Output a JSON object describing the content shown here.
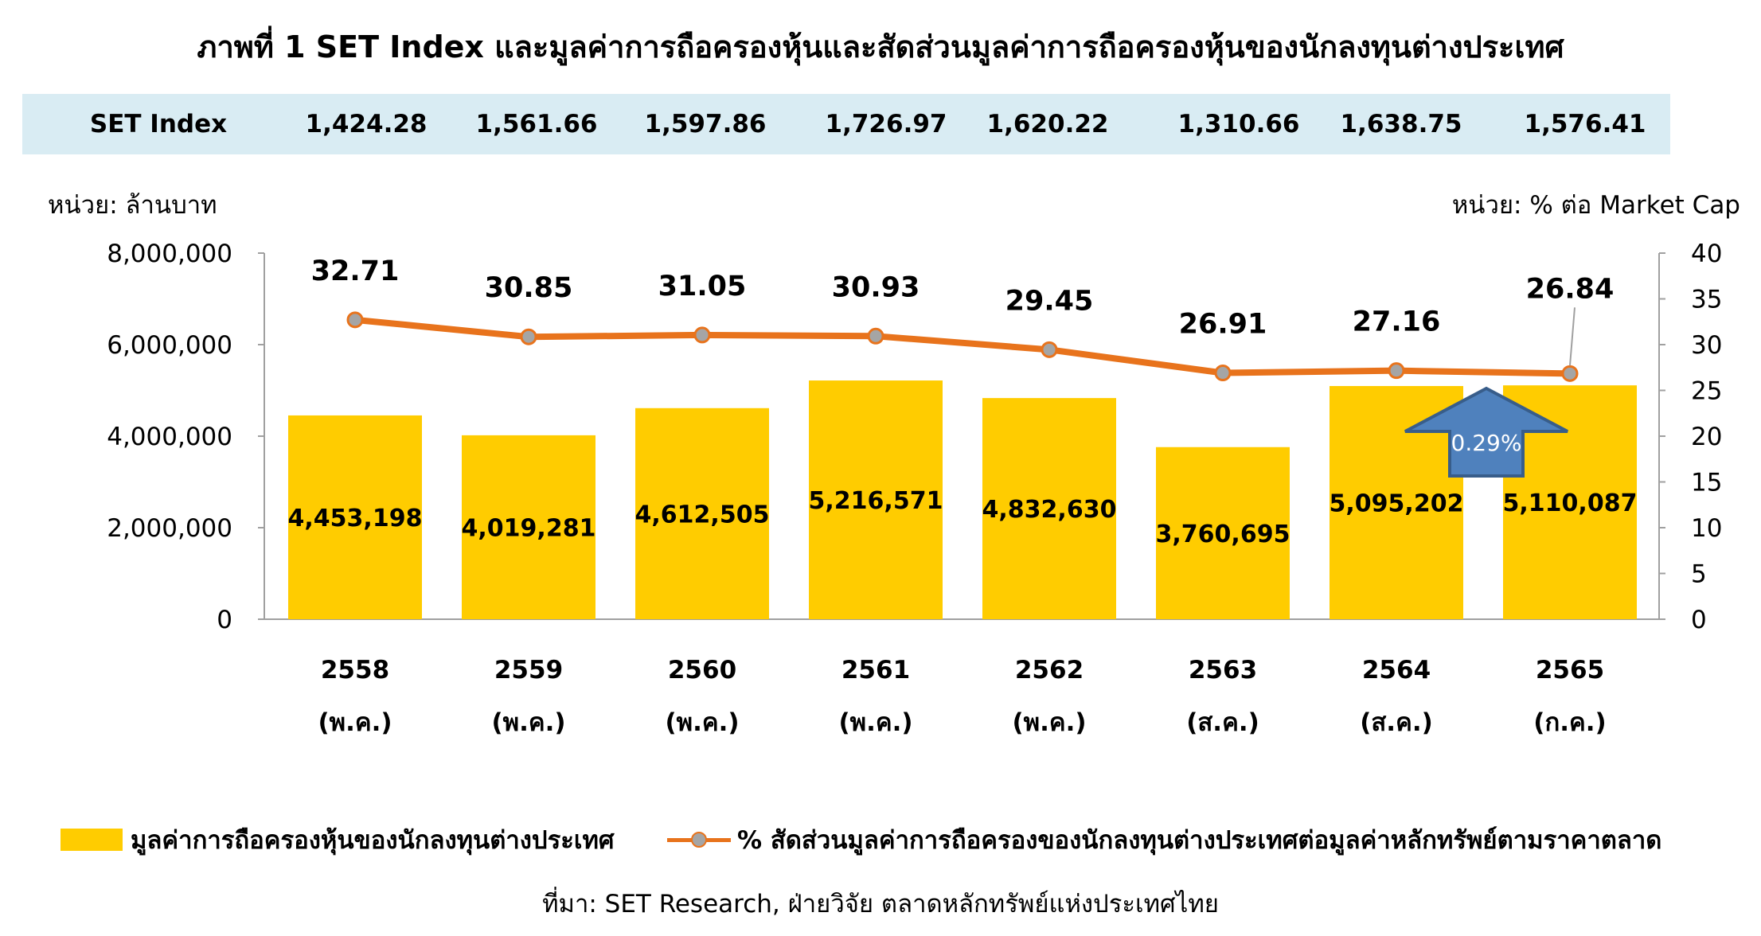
{
  "title": "ภาพที่ 1 SET Index และมูลค่าการถือครองหุ้นและสัดส่วนมูลค่าการถือครองหุ้นของนักลงทุนต่างประเทศ",
  "set_index": {
    "label": "SET Index",
    "values": [
      "1,424.28",
      "1,561.66",
      "1,597.86",
      "1,726.97",
      "1,620.22",
      "1,310.66",
      "1,638.75",
      "1,576.41"
    ]
  },
  "unit_left": "หน่วย: ล้านบาท",
  "unit_right": "หน่วย: % ต่อ Market Cap",
  "source": "ที่มา: SET Research, ฝ่ายวิจัย ตลาดหลักทรัพย์แห่งประเทศไทย",
  "colors": {
    "bar": "#ffcc00",
    "line": "#e8731c",
    "marker": "#a5a5a5",
    "arrow": "#4f81bd",
    "axis": "#a0a0a0"
  },
  "chart_data": {
    "type": "bar",
    "categories": [
      "2558",
      "2559",
      "2560",
      "2561",
      "2562",
      "2563",
      "2564",
      "2565"
    ],
    "category_sublabels": [
      "(พ.ค.)",
      "(พ.ค.)",
      "(พ.ค.)",
      "(พ.ค.)",
      "(พ.ค.)",
      "(ส.ค.)",
      "(ส.ค.)",
      "(ก.ค.)"
    ],
    "series": [
      {
        "name": "มูลค่าการถือครองหุ้นของนักลงทุนต่างประเทศ",
        "type": "bar",
        "axis": "left",
        "values": [
          4453198,
          4019281,
          4612505,
          5216571,
          4832630,
          3760695,
          5095202,
          5110087
        ],
        "labels": [
          "4,453,198",
          "4,019,281",
          "4,612,505",
          "5,216,571",
          "4,832,630",
          "3,760,695",
          "5,095,202",
          "5,110,087"
        ]
      },
      {
        "name": "% สัดส่วนมูลค่าการถือครองของนักลงทุนต่างประเทศต่อมูลค่าหลักทรัพย์ตามราคาตลาด",
        "type": "line",
        "axis": "right",
        "values": [
          32.71,
          30.85,
          31.05,
          30.93,
          29.45,
          26.91,
          27.16,
          26.84
        ],
        "labels": [
          "32.71",
          "30.85",
          "31.05",
          "30.93",
          "29.45",
          "26.91",
          "27.16",
          "26.84"
        ]
      }
    ],
    "ylim_left": [
      0,
      8000000
    ],
    "ylim_right": [
      0,
      40
    ],
    "left_ticks": [
      0,
      2000000,
      4000000,
      6000000,
      8000000
    ],
    "left_tick_labels": [
      "0",
      "2,000,000",
      "4,000,000",
      "6,000,000",
      "8,000,000"
    ],
    "right_ticks": [
      0,
      5,
      10,
      15,
      20,
      25,
      30,
      35,
      40
    ],
    "right_tick_labels": [
      "0",
      "5",
      "10",
      "15",
      "20",
      "25",
      "30",
      "35",
      "40"
    ],
    "annotation": {
      "text": "0.29%",
      "category_index": 7
    },
    "legend_position": "bottom",
    "grid": false
  }
}
